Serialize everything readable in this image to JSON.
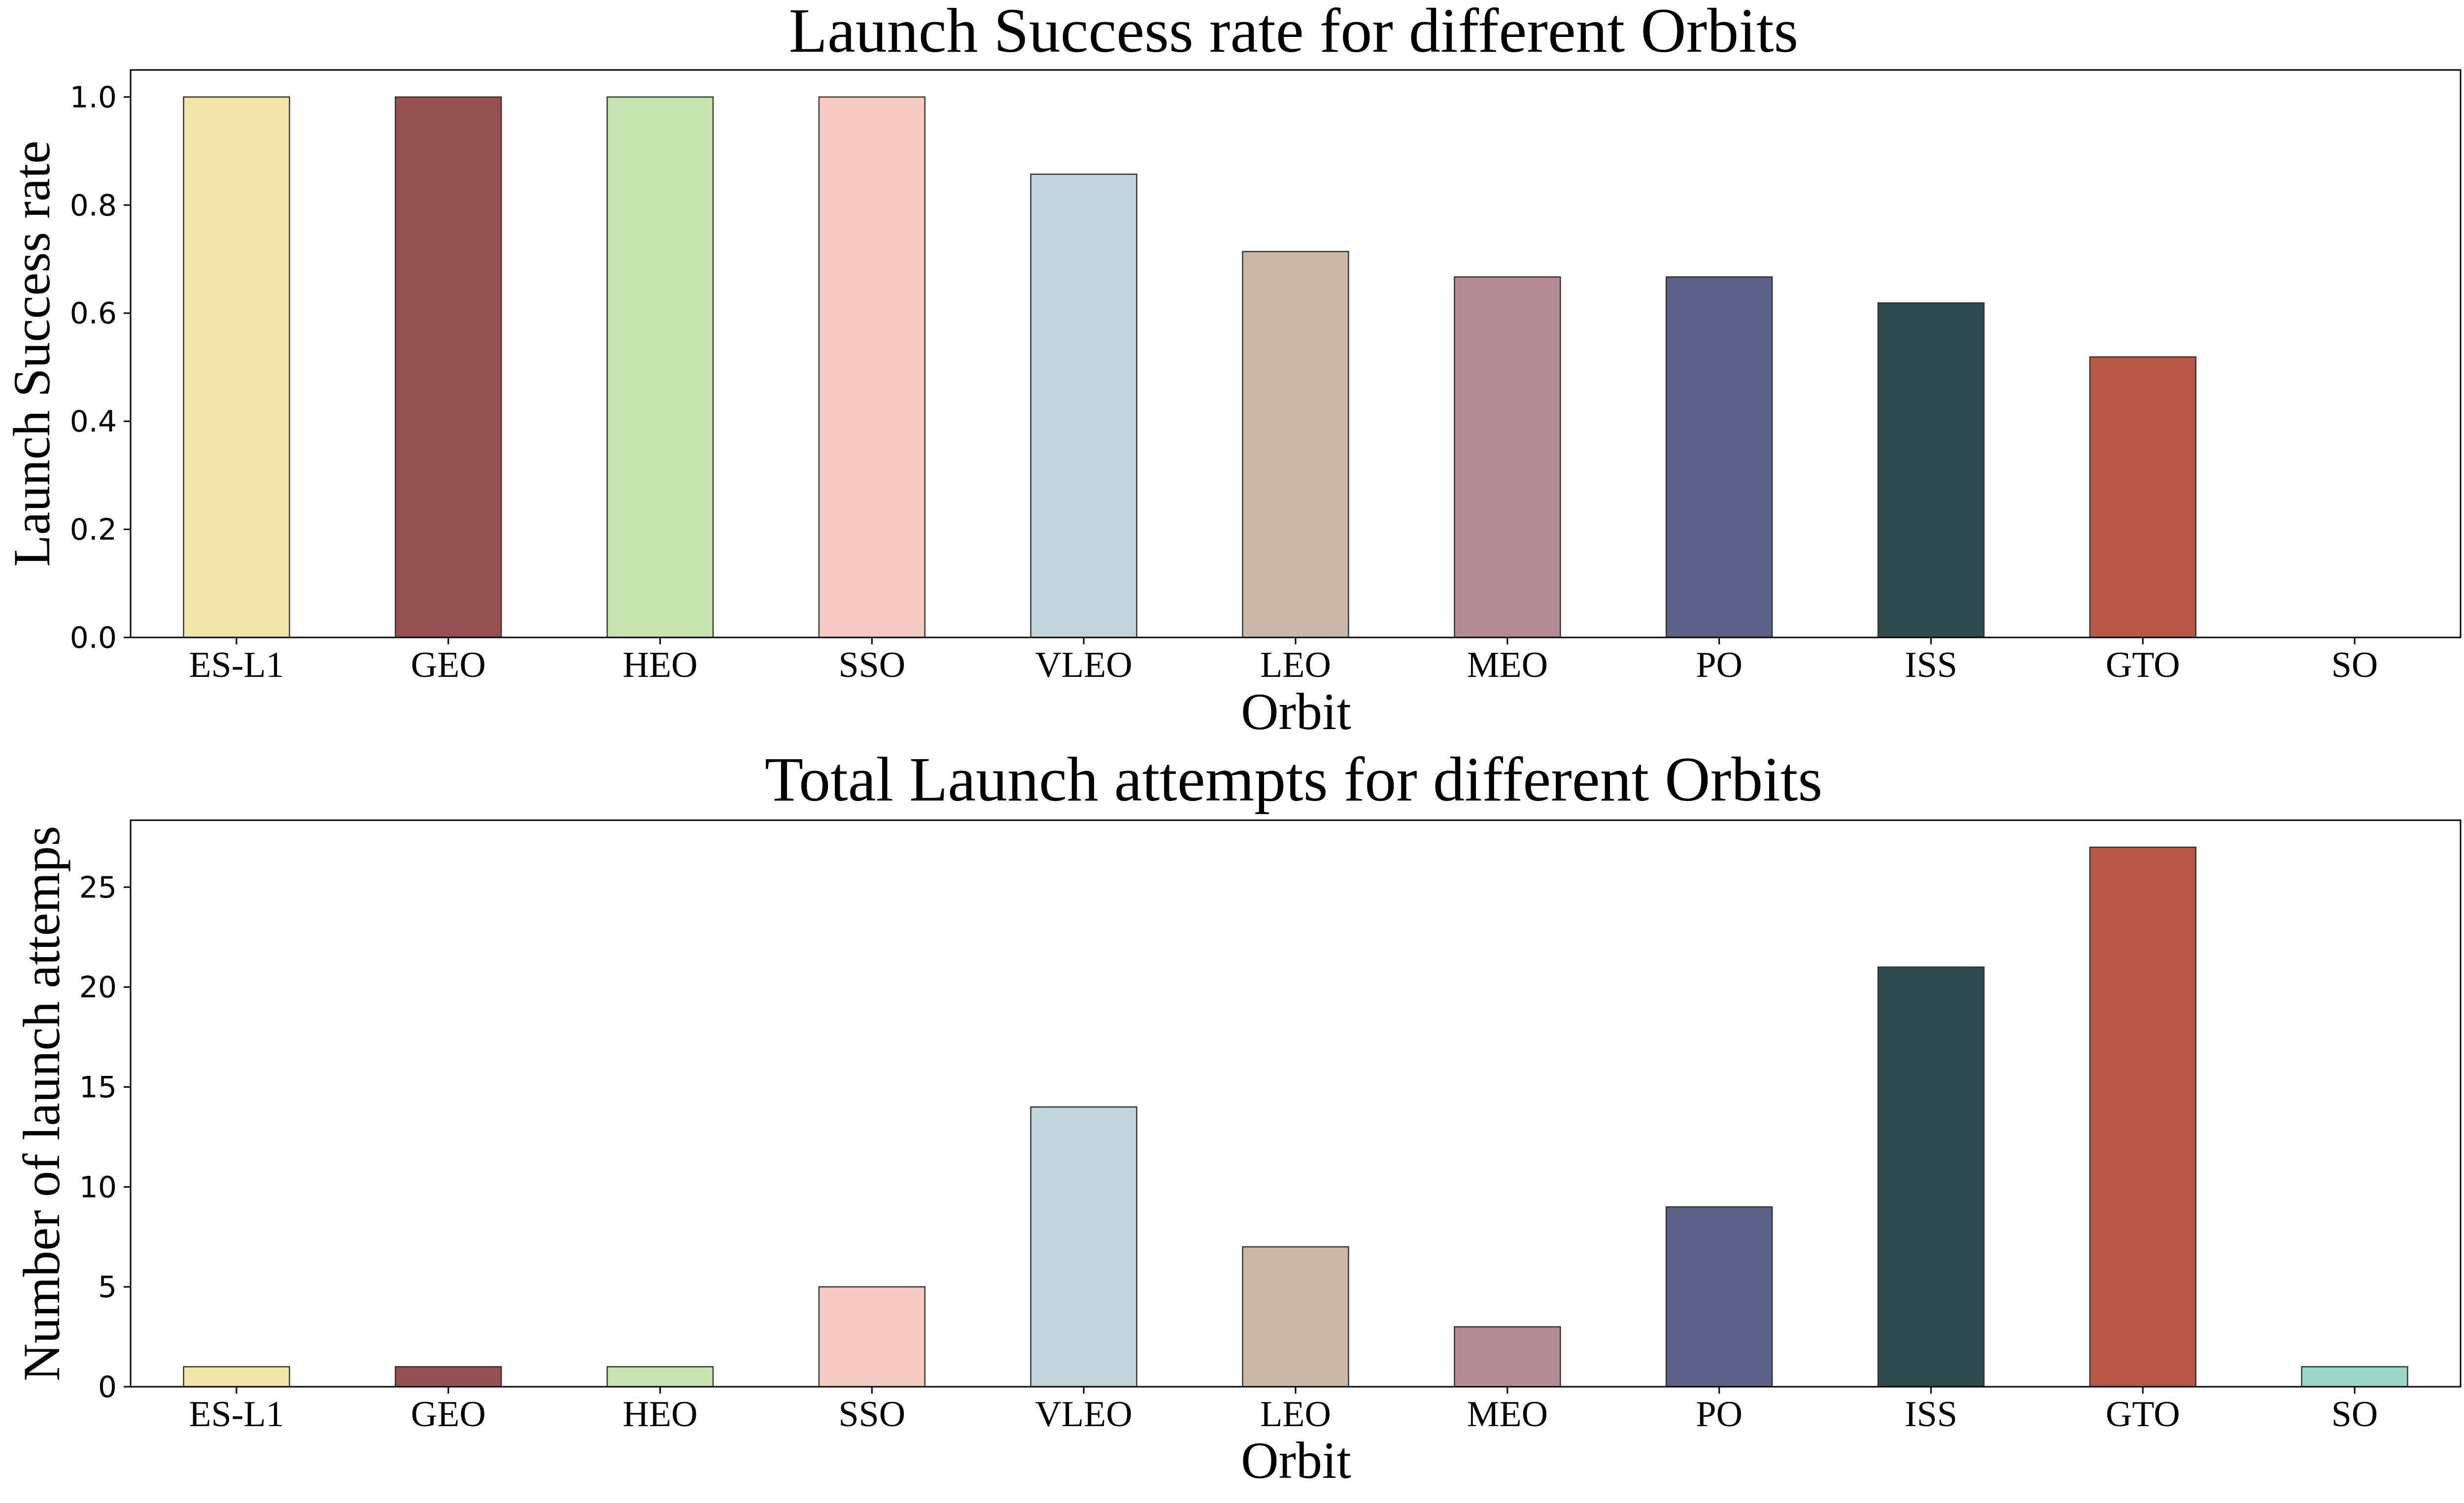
{
  "chart_data": [
    {
      "type": "bar",
      "title": "Launch Success rate for different Orbits",
      "xlabel": "Orbit",
      "ylabel": "Launch Success rate",
      "categories": [
        "ES-L1",
        "GEO",
        "HEO",
        "SSO",
        "VLEO",
        "LEO",
        "MEO",
        "PO",
        "ISS",
        "GTO",
        "SO"
      ],
      "values": [
        1.0,
        1.0,
        1.0,
        1.0,
        0.857,
        0.714,
        0.667,
        0.667,
        0.619,
        0.519,
        0.0
      ],
      "colors": [
        "#F3E4A8",
        "#964F4F",
        "#C5E5B0",
        "#F7CAC0",
        "#C2D5DA",
        "#CAB8A4",
        "#B38B95",
        "#5B6087",
        "#304B4D",
        "#B85746",
        "#99D6C9"
      ],
      "ylim": [
        0,
        1.05
      ],
      "yticks": [
        0.0,
        0.2,
        0.4,
        0.6,
        0.8,
        1.0
      ],
      "ytick_labels": [
        "0.0",
        "0.2",
        "0.4",
        "0.6",
        "0.8",
        "1.0"
      ],
      "grid": false
    },
    {
      "type": "bar",
      "title": "Total Launch attempts for different Orbits",
      "xlabel": "Orbit",
      "ylabel": "Number of launch attemps",
      "categories": [
        "ES-L1",
        "GEO",
        "HEO",
        "SSO",
        "VLEO",
        "LEO",
        "MEO",
        "PO",
        "ISS",
        "GTO",
        "SO"
      ],
      "values": [
        1,
        1,
        1,
        5,
        14,
        7,
        3,
        9,
        21,
        27,
        1
      ],
      "colors": [
        "#F3E4A8",
        "#964F4F",
        "#C5E5B0",
        "#F7CAC0",
        "#C2D5DA",
        "#CAB8A4",
        "#B38B95",
        "#5B6087",
        "#304B4D",
        "#B85746",
        "#99D6C9"
      ],
      "ylim": [
        0,
        28.35
      ],
      "yticks": [
        0,
        5,
        10,
        15,
        20,
        25
      ],
      "ytick_labels": [
        "0",
        "5",
        "10",
        "15",
        "20",
        "25"
      ],
      "grid": false
    }
  ]
}
